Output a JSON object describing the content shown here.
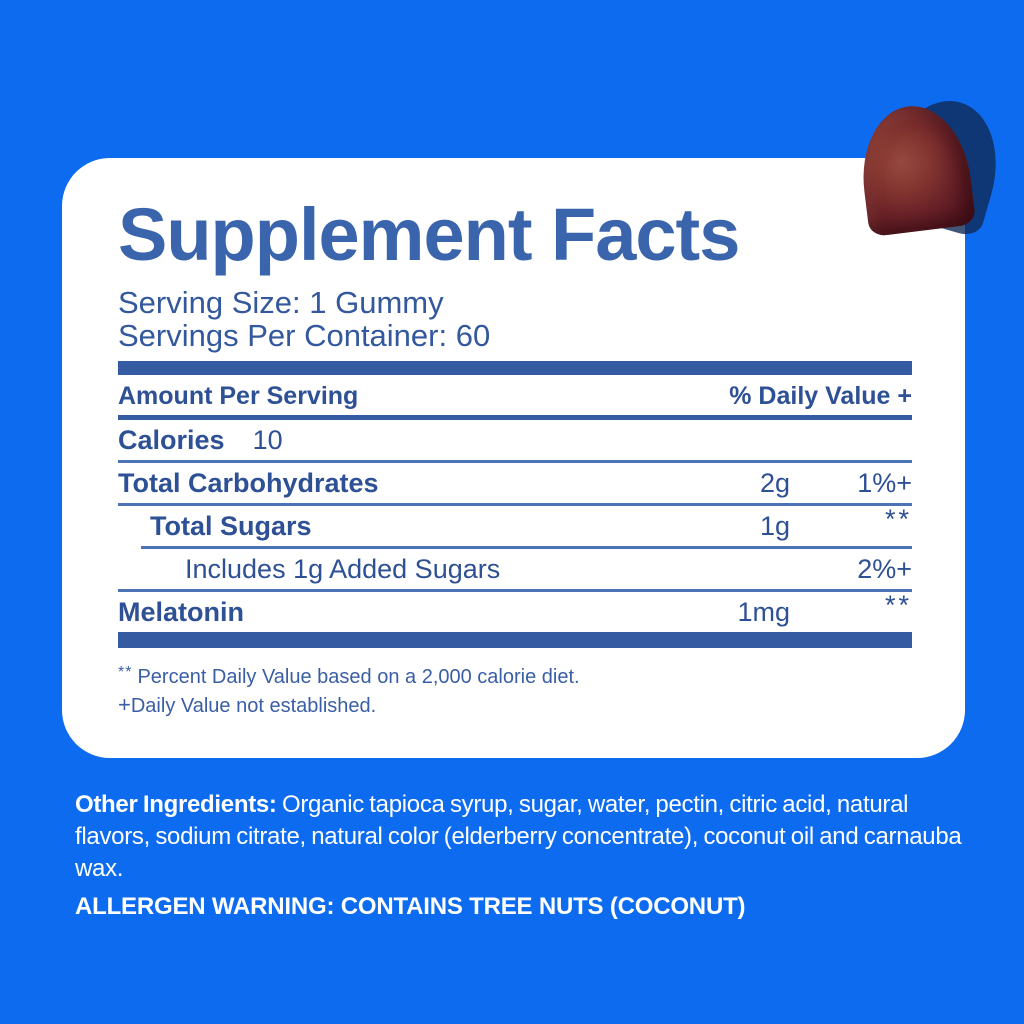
{
  "canvas": {
    "background_color": "#0D6BF0",
    "accent_navy": "#355CA3",
    "text_navy": "#2E5094"
  },
  "gummy": {
    "description": "dark red elderberry gummy candy",
    "body_color": "#6B2329",
    "shadow_color": "#1F4077"
  },
  "card": {
    "title": "Supplement Facts",
    "serving_size_line": "Serving Size: 1 Gummy",
    "servings_per_container_line": "Servings Per Container: 60",
    "table": {
      "header_left": "Amount Per Serving",
      "header_right": "% Daily Value +",
      "rows": [
        {
          "name": "Calories",
          "inline_value": "10",
          "value": "",
          "dv": ""
        },
        {
          "name": "Total Carbohydrates",
          "inline_value": "",
          "value": "2g",
          "dv": "1%+"
        },
        {
          "name": "Total Sugars",
          "inline_value": "",
          "value": "1g",
          "dv": "**"
        },
        {
          "name": "Includes 1g Added Sugars",
          "inline_value": "",
          "value": "",
          "dv": "2%+"
        },
        {
          "name": "Melatonin",
          "inline_value": "",
          "value": "1mg",
          "dv": "**"
        }
      ]
    },
    "footnotes": {
      "daily_value_symbol": "**",
      "daily_value_text": "Percent Daily Value based on a 2,000 calorie diet.",
      "not_established_symbol": "+",
      "not_established_text": "Daily Value not established."
    }
  },
  "below_card": {
    "other_ingredients_label": "Other Ingredients:",
    "other_ingredients_text": " Organic tapioca syrup, sugar, water, pectin, citric acid, natural flavors, sodium citrate, natural color (elderberry concentrate), coconut oil and carnauba wax.",
    "allergen_warning": "ALLERGEN WARNING: CONTAINS TREE NUTS (COCONUT)"
  }
}
